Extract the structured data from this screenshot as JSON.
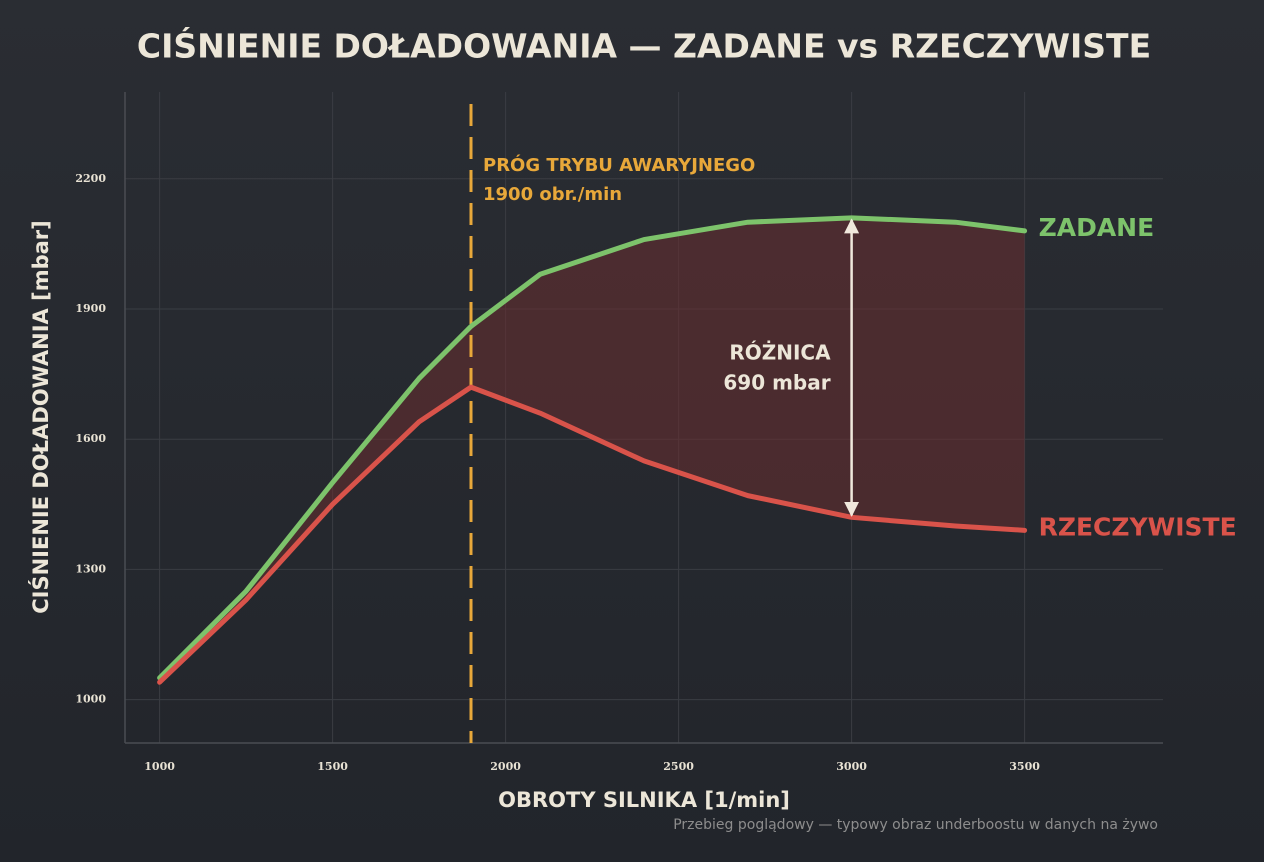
{
  "chart_data": {
    "type": "line",
    "title": "CIŚNIENIE DOŁADOWANIA — ZADANE vs RZECZYWISTE",
    "xlabel": "OBROTY SILNIKA [1/min]",
    "ylabel": "CIŚNIENIE DOŁADOWANIA [mbar]",
    "footnote": "Przebieg poglądowy — typowy obraz underboostu w danych na żywo",
    "x": [
      1000,
      1250,
      1500,
      1750,
      1900,
      2100,
      2400,
      2700,
      3000,
      3300,
      3500
    ],
    "series": [
      {
        "name": "ZADANE",
        "color": "#7dc36b",
        "values": [
          1050,
          1250,
          1500,
          1740,
          1860,
          1980,
          2060,
          2100,
          2110,
          2100,
          2080
        ]
      },
      {
        "name": "RZECZYWISTE",
        "color": "#d9534a",
        "values": [
          1040,
          1230,
          1450,
          1640,
          1720,
          1660,
          1550,
          1470,
          1420,
          1400,
          1390
        ]
      }
    ],
    "xlim": [
      900,
      3900
    ],
    "xticks": [
      1000,
      1500,
      2000,
      2500,
      3000,
      3500
    ],
    "ylim": [
      900,
      2400
    ],
    "yticks": [
      1000,
      1300,
      1600,
      1900,
      2200
    ],
    "grid": true,
    "threshold": {
      "x": 1900,
      "color": "#e8a83a",
      "label": [
        "PRÓG TRYBU AWARYJNEGO",
        "1900 obr./min"
      ]
    },
    "difference": {
      "x": 3000,
      "label": [
        "RÓŻNICA",
        "690 mbar"
      ]
    }
  }
}
